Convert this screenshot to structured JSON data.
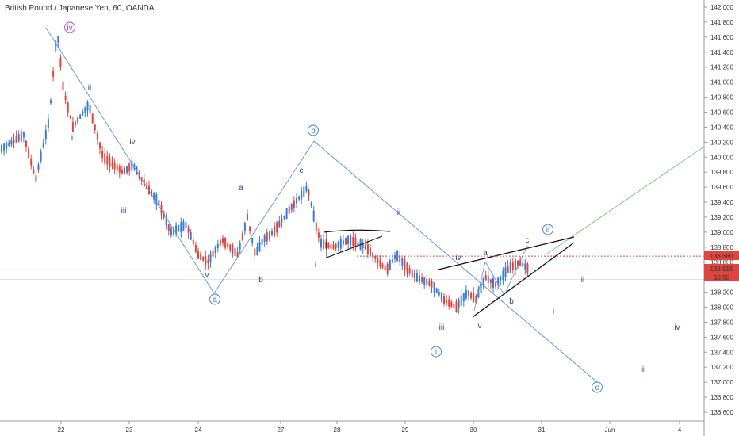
{
  "title": "British Pound / Japanese Yen, 60, OANDA",
  "colors": {
    "up": "#3a7bd5",
    "down": "#e0443c",
    "wave_line": "#5b8fd6",
    "wave_text": "#2a3d8f",
    "circle_label": "#3a7bd5",
    "green_line": "#7fbf9a",
    "magenta": "#c23fc2",
    "dotted_red": "#e0443c"
  },
  "chart_data": {
    "type": "candlestick",
    "title": "British Pound / Japanese Yen, 60, OANDA",
    "ylim": [
      136.5,
      142.1
    ],
    "x_tick_labels": [
      "22",
      "23",
      "24",
      "27",
      "28",
      "29",
      "30",
      "31",
      "Jun",
      "4"
    ],
    "y_tick_labels": [
      "142.000",
      "141.800",
      "141.600",
      "141.400",
      "141.200",
      "141.000",
      "140.800",
      "140.600",
      "140.400",
      "140.200",
      "140.000",
      "139.800",
      "139.600",
      "139.400",
      "139.200",
      "139.000",
      "138.800",
      "138.600",
      "138.400",
      "138.200",
      "138.000",
      "137.800",
      "137.600",
      "137.400",
      "137.200",
      "137.000",
      "136.800",
      "136.600"
    ],
    "price_tags": [
      {
        "label": "138.680",
        "value": 138.68,
        "color": "#e0443c"
      },
      {
        "label": "138.515",
        "value": 138.515,
        "color": "#e0443c"
      },
      {
        "label": "56:50",
        "value": 138.37,
        "color": "#e0443c"
      }
    ],
    "wave_labels": [
      {
        "text": "iv",
        "circled": true,
        "color": "#c23fc2"
      },
      {
        "text": "ii"
      },
      {
        "text": "i"
      },
      {
        "text": "iv"
      },
      {
        "text": "iii"
      },
      {
        "text": "v"
      },
      {
        "text": "a",
        "circled": true
      },
      {
        "text": "a"
      },
      {
        "text": "b"
      },
      {
        "text": "c"
      },
      {
        "text": "b",
        "circled": true
      },
      {
        "text": "i"
      },
      {
        "text": "ii"
      },
      {
        "text": "iv"
      },
      {
        "text": "iii"
      },
      {
        "text": "v"
      },
      {
        "text": "i",
        "circled": true
      },
      {
        "text": "a"
      },
      {
        "text": "b"
      },
      {
        "text": "c"
      },
      {
        "text": "ii",
        "circled": true
      },
      {
        "text": "ii"
      },
      {
        "text": "i"
      },
      {
        "text": "iii"
      },
      {
        "text": "iv"
      },
      {
        "text": "c",
        "circled": true
      }
    ]
  }
}
